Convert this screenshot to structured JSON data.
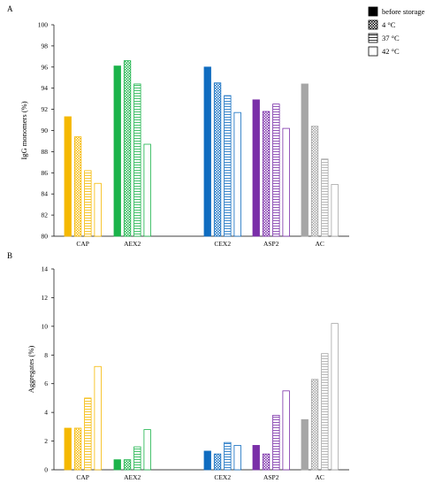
{
  "figure": {
    "legend": [
      {
        "label": "before storage",
        "pattern": "solid"
      },
      {
        "label": "4 °C",
        "pattern": "checker"
      },
      {
        "label": "37 °C",
        "pattern": "hlines"
      },
      {
        "label": "42 °C",
        "pattern": "white"
      }
    ],
    "colors": {
      "CAP": "#f5b800",
      "AEX2": "#1bb34a",
      "CEX2": "#0f6cc0",
      "ASP2": "#7a2fa8",
      "AC": "#a6a6a6"
    }
  },
  "chart_data": [
    {
      "type": "bar",
      "panel_label": "A",
      "title": "",
      "xlabel": "",
      "ylabel": "IgG monomers (%)",
      "ylim": [
        80,
        100
      ],
      "yticks": [
        80,
        82,
        84,
        86,
        88,
        90,
        92,
        94,
        96,
        98,
        100
      ],
      "grid": false,
      "legend_position": "top-right",
      "categories": [
        "CAP",
        "AEX2",
        "CEX2",
        "ASP2",
        "AC"
      ],
      "series": [
        {
          "name": "before storage",
          "values": [
            91.3,
            96.1,
            96.0,
            92.9,
            94.4
          ]
        },
        {
          "name": "4 °C",
          "values": [
            89.4,
            96.6,
            94.5,
            91.8,
            90.4
          ]
        },
        {
          "name": "37 °C",
          "values": [
            86.2,
            94.4,
            93.3,
            92.5,
            87.3
          ]
        },
        {
          "name": "42 °C",
          "values": [
            85.0,
            88.7,
            91.7,
            90.2,
            84.9
          ]
        }
      ]
    },
    {
      "type": "bar",
      "panel_label": "B",
      "title": "",
      "xlabel": "",
      "ylabel": "Aggregates (%)",
      "ylim": [
        0,
        14
      ],
      "yticks": [
        0,
        2,
        4,
        6,
        8,
        10,
        12,
        14
      ],
      "grid": false,
      "categories": [
        "CAP",
        "AEX2",
        "CEX2",
        "ASP2",
        "AC"
      ],
      "series": [
        {
          "name": "before storage",
          "values": [
            2.9,
            0.7,
            1.3,
            1.7,
            3.5
          ]
        },
        {
          "name": "4 °C",
          "values": [
            2.9,
            0.7,
            1.1,
            1.1,
            6.3
          ]
        },
        {
          "name": "37 °C",
          "values": [
            5.0,
            1.6,
            1.9,
            3.8,
            8.1
          ]
        },
        {
          "name": "42 °C",
          "values": [
            7.2,
            2.8,
            1.7,
            5.5,
            10.2
          ]
        }
      ]
    }
  ]
}
